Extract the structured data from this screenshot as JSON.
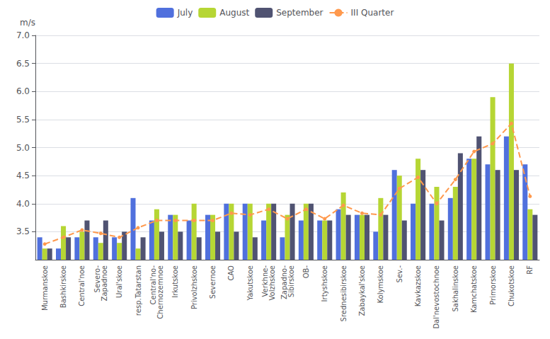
{
  "chart_data": {
    "type": "bar",
    "ylabel": "m/s",
    "categories": [
      "Murmanskoe",
      "Bashkirskoe",
      "Central'noe",
      "Severo-\nZapadnoe",
      "Ural'skoe",
      "resp.Tatarstan",
      "Central'no-\nChernozemnoe",
      "Irkutskoe",
      "Privolzhskoe",
      "Severnoe",
      "CAO",
      "Yakutskoe",
      "Verkhne-\nVolzhskoe",
      "Zapadno-\nSibirskoe",
      "OB-",
      "Irtyshskoe",
      "Srednesibirskoe",
      "Zabaykal'skoe",
      "Kolymskoe",
      "Sev.-",
      "Kavkazskoe",
      "Dal'nevostochnoe",
      "Sakhalinskoe",
      "Kamchatskoe",
      "Primorskoe",
      "Chukotskoe",
      "RF"
    ],
    "series": [
      {
        "name": "July",
        "type": "bar",
        "values": [
          3.4,
          3.2,
          3.4,
          3.4,
          3.4,
          4.1,
          3.7,
          3.8,
          3.7,
          3.8,
          4.0,
          4.0,
          3.7,
          3.4,
          3.7,
          3.7,
          3.9,
          3.8,
          3.5,
          4.6,
          4.0,
          4.0,
          4.1,
          4.8,
          4.7,
          5.2,
          4.7
        ]
      },
      {
        "name": "August",
        "type": "bar",
        "values": [
          3.2,
          3.6,
          3.5,
          3.3,
          3.3,
          3.2,
          3.9,
          3.8,
          4.0,
          3.8,
          4.0,
          4.0,
          4.0,
          3.8,
          4.0,
          3.7,
          4.2,
          3.8,
          4.1,
          4.5,
          4.8,
          4.3,
          4.3,
          4.8,
          5.9,
          6.5,
          3.9
        ]
      },
      {
        "name": "September",
        "type": "bar",
        "values": [
          3.2,
          3.4,
          3.7,
          3.7,
          3.5,
          3.4,
          3.5,
          3.5,
          3.4,
          3.5,
          3.5,
          3.4,
          4.0,
          4.0,
          4.0,
          3.7,
          3.8,
          3.8,
          3.8,
          3.7,
          4.6,
          3.7,
          4.9,
          5.2,
          4.6,
          4.6,
          3.8
        ]
      },
      {
        "name": "III Quarter",
        "type": "line",
        "line_style": "dashed",
        "marker": "circle",
        "values": [
          3.28,
          3.4,
          3.53,
          3.47,
          3.4,
          3.57,
          3.7,
          3.7,
          3.7,
          3.7,
          3.83,
          3.8,
          3.9,
          3.73,
          3.9,
          3.73,
          3.97,
          3.83,
          3.8,
          4.27,
          4.47,
          4.0,
          4.43,
          4.93,
          5.07,
          5.43,
          4.13
        ]
      }
    ],
    "ylim": [
      3.0,
      7.0
    ],
    "yticks": [
      3.5,
      {
        "value": 4.0,
        "label": "4.0"
      },
      4.5,
      {
        "value": 5.0,
        "label": "5.0"
      },
      5.5,
      {
        "value": 6.0,
        "label": "6.0"
      },
      6.5,
      {
        "value": 7.0,
        "label": "7.0"
      }
    ],
    "grid": true,
    "legend": "top"
  }
}
